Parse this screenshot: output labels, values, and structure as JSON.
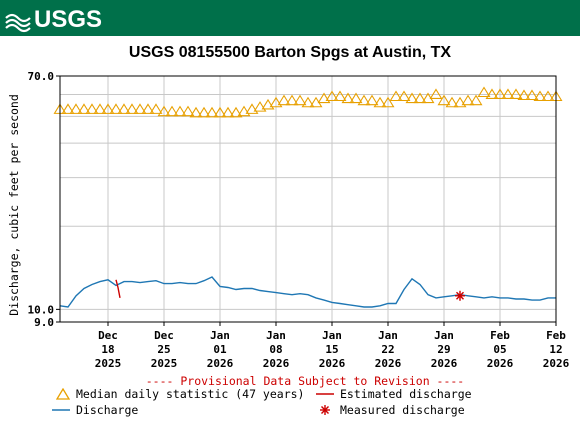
{
  "header": {
    "logo_text": "USGS",
    "title": "USGS 08155500 Barton Spgs at Austin, TX",
    "brand_color": "#00704a"
  },
  "chart_data": {
    "type": "line",
    "title": "USGS 08155500 Barton Spgs at Austin, TX",
    "ylabel": "Discharge, cubic feet per second",
    "xlabel": "",
    "y_scale": "log",
    "ylim": [
      9.0,
      70.0
    ],
    "y_ticks": [
      {
        "value": 70.0,
        "label": "70.0"
      },
      {
        "value": 10.0,
        "label": "10.0"
      },
      {
        "value": 9.0,
        "label": "9.0"
      }
    ],
    "xlim": [
      "2025-12-12",
      "2026-02-12"
    ],
    "x_ticks": [
      {
        "date": "2025-12-18",
        "label": [
          "Dec",
          "18",
          "2025"
        ]
      },
      {
        "date": "2025-12-25",
        "label": [
          "Dec",
          "25",
          "2025"
        ]
      },
      {
        "date": "2026-01-01",
        "label": [
          "Jan",
          "01",
          "2026"
        ]
      },
      {
        "date": "2026-01-08",
        "label": [
          "Jan",
          "08",
          "2026"
        ]
      },
      {
        "date": "2026-01-15",
        "label": [
          "Jan",
          "15",
          "2026"
        ]
      },
      {
        "date": "2026-01-22",
        "label": [
          "Jan",
          "22",
          "2026"
        ]
      },
      {
        "date": "2026-01-29",
        "label": [
          "Jan",
          "29",
          "2026"
        ]
      },
      {
        "date": "2026-02-05",
        "label": [
          "Feb",
          "05",
          "2026"
        ]
      },
      {
        "date": "2026-02-12",
        "label": [
          "Feb",
          "12",
          "2026"
        ]
      }
    ],
    "grid": true,
    "series": [
      {
        "name": "Median daily statistic (47 years)",
        "kind": "markers",
        "marker": "triangle-open",
        "color": "#e8a000",
        "x": [
          "2025-12-12",
          "2025-12-13",
          "2025-12-14",
          "2025-12-15",
          "2025-12-16",
          "2025-12-17",
          "2025-12-18",
          "2025-12-19",
          "2025-12-20",
          "2025-12-21",
          "2025-12-22",
          "2025-12-23",
          "2025-12-24",
          "2025-12-25",
          "2025-12-26",
          "2025-12-27",
          "2025-12-28",
          "2025-12-29",
          "2025-12-30",
          "2025-12-31",
          "2026-01-01",
          "2026-01-02",
          "2026-01-03",
          "2026-01-04",
          "2026-01-05",
          "2026-01-06",
          "2026-01-07",
          "2026-01-08",
          "2026-01-09",
          "2026-01-10",
          "2026-01-11",
          "2026-01-12",
          "2026-01-13",
          "2026-01-14",
          "2026-01-15",
          "2026-01-16",
          "2026-01-17",
          "2026-01-18",
          "2026-01-19",
          "2026-01-20",
          "2026-01-21",
          "2026-01-22",
          "2026-01-23",
          "2026-01-24",
          "2026-01-25",
          "2026-01-26",
          "2026-01-27",
          "2026-01-28",
          "2026-01-29",
          "2026-01-30",
          "2026-01-31",
          "2026-02-01",
          "2026-02-02",
          "2026-02-03",
          "2026-02-04",
          "2026-02-05",
          "2026-02-06",
          "2026-02-07",
          "2026-02-08",
          "2026-02-09",
          "2026-02-10",
          "2026-02-11",
          "2026-02-12"
        ],
        "values": [
          53,
          53,
          53,
          53,
          53,
          53,
          53,
          53,
          53,
          53,
          53,
          53,
          53,
          52,
          52,
          52,
          52,
          51.5,
          51.5,
          51.5,
          51.5,
          51.5,
          51.5,
          52,
          53,
          54,
          55,
          56,
          57,
          57,
          57,
          56,
          56,
          58,
          59,
          59,
          58,
          58,
          57,
          57,
          56,
          56,
          59,
          59,
          58,
          58,
          58,
          60,
          57,
          56,
          56,
          57,
          57,
          61,
          60,
          60,
          60,
          60,
          59.5,
          59.5,
          59,
          59,
          59
        ]
      },
      {
        "name": "Discharge",
        "kind": "line",
        "color": "#1f77b4",
        "x": [
          "2025-12-12",
          "2025-12-13",
          "2025-12-14",
          "2025-12-15",
          "2025-12-16",
          "2025-12-17",
          "2025-12-18",
          "2025-12-19",
          "2025-12-20",
          "2025-12-21",
          "2025-12-22",
          "2025-12-23",
          "2025-12-24",
          "2025-12-25",
          "2025-12-26",
          "2025-12-27",
          "2025-12-28",
          "2025-12-29",
          "2025-12-30",
          "2025-12-31",
          "2026-01-01",
          "2026-01-02",
          "2026-01-03",
          "2026-01-04",
          "2026-01-05",
          "2026-01-06",
          "2026-01-07",
          "2026-01-08",
          "2026-01-09",
          "2026-01-10",
          "2026-01-11",
          "2026-01-12",
          "2026-01-13",
          "2026-01-14",
          "2026-01-15",
          "2026-01-16",
          "2026-01-17",
          "2026-01-18",
          "2026-01-19",
          "2026-01-20",
          "2026-01-21",
          "2026-01-22",
          "2026-01-23",
          "2026-01-24",
          "2026-01-25",
          "2026-01-26",
          "2026-01-27",
          "2026-01-28",
          "2026-01-29",
          "2026-01-30",
          "2026-01-31",
          "2026-02-01",
          "2026-02-02",
          "2026-02-03",
          "2026-02-04",
          "2026-02-05",
          "2026-02-06",
          "2026-02-07",
          "2026-02-08",
          "2026-02-09",
          "2026-02-10",
          "2026-02-11",
          "2026-02-12"
        ],
        "values": [
          10.3,
          10.2,
          11.2,
          11.9,
          12.3,
          12.6,
          12.8,
          12.2,
          12.6,
          12.6,
          12.5,
          12.6,
          12.7,
          12.4,
          12.4,
          12.5,
          12.4,
          12.4,
          12.7,
          13.1,
          12.1,
          12.0,
          11.8,
          11.9,
          11.9,
          11.7,
          11.6,
          11.5,
          11.4,
          11.3,
          11.4,
          11.3,
          11.0,
          10.8,
          10.6,
          10.5,
          10.4,
          10.3,
          10.2,
          10.2,
          10.3,
          10.5,
          10.5,
          11.8,
          12.9,
          12.3,
          11.3,
          11.0,
          11.1,
          11.2,
          11.3,
          11.2,
          11.1,
          11.0,
          11.1,
          11.0,
          11.0,
          10.9,
          10.9,
          10.8,
          10.8,
          11.0,
          11.0
        ]
      },
      {
        "name": "Estimated discharge",
        "kind": "line",
        "color": "#cc0000",
        "x": [
          "2025-12-19",
          "2025-12-19T06:00",
          "2025-12-19T12:00"
        ],
        "values": [
          12.8,
          12.0,
          11.0
        ]
      },
      {
        "name": "Measured discharge",
        "kind": "markers",
        "marker": "asterisk",
        "color": "#cc0000",
        "x": [
          "2026-01-31"
        ],
        "values": [
          11.2
        ]
      }
    ]
  },
  "footer": {
    "disclaimer": "---- Provisional Data Subject to Revision ----",
    "disclaimer_color": "#cc0000"
  },
  "legend": {
    "median": "Median daily statistic (47 years)",
    "estimated": "Estimated discharge",
    "discharge": "Discharge",
    "measured": "Measured discharge"
  }
}
